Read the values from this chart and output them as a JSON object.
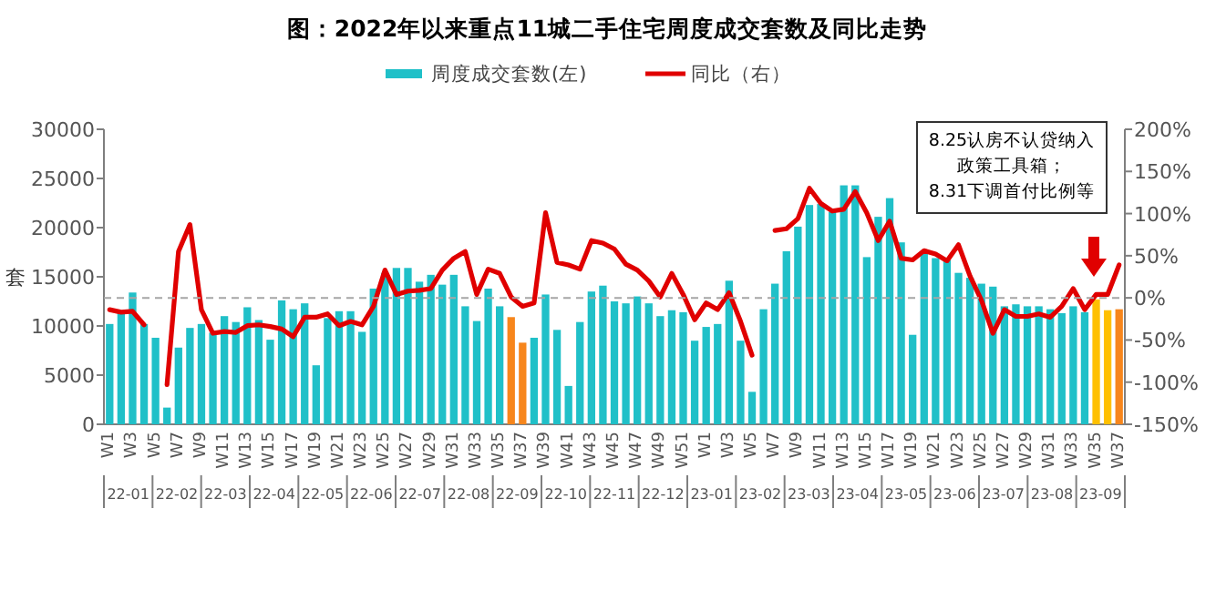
{
  "chart_data": {
    "type": "bar",
    "title": "图：2022年以来重点11城二手住宅周度成交套数及同比走势",
    "ylabel": "套",
    "categories": [
      "W1",
      null,
      "W3",
      null,
      "W5",
      null,
      "W7",
      null,
      "W9",
      null,
      "W11",
      null,
      "W13",
      null,
      "W15",
      null,
      "W17",
      null,
      "W19",
      null,
      "W21",
      null,
      "W23",
      null,
      "W25",
      null,
      "W27",
      null,
      "W29",
      null,
      "W31",
      null,
      "W33",
      null,
      "W35",
      null,
      "W37",
      null,
      "W39",
      null,
      "W41",
      null,
      "W43",
      null,
      "W45",
      null,
      "W47",
      null,
      "W49",
      null,
      "W51",
      null,
      "W1",
      null,
      "W3",
      null,
      "W5",
      null,
      "W7",
      null,
      "W9",
      null,
      "W11",
      null,
      "W13",
      null,
      "W15",
      null,
      "W17",
      null,
      "W19",
      null,
      "W21",
      null,
      "W23",
      null,
      "W25",
      null,
      "W27",
      null,
      "W29",
      null,
      "W31",
      null,
      "W33",
      null,
      "W35",
      null,
      "W37"
    ],
    "series": [
      {
        "name": "周度成交套数(左)",
        "color": "#20c0c8",
        "colors": [
          "#20c0c8",
          "#20c0c8",
          "#20c0c8",
          "#20c0c8",
          "#20c0c8",
          "#20c0c8",
          "#20c0c8",
          "#20c0c8",
          "#20c0c8",
          "#20c0c8",
          "#20c0c8",
          "#20c0c8",
          "#20c0c8",
          "#20c0c8",
          "#20c0c8",
          "#20c0c8",
          "#20c0c8",
          "#20c0c8",
          "#20c0c8",
          "#20c0c8",
          "#20c0c8",
          "#20c0c8",
          "#20c0c8",
          "#20c0c8",
          "#20c0c8",
          "#20c0c8",
          "#20c0c8",
          "#20c0c8",
          "#20c0c8",
          "#20c0c8",
          "#20c0c8",
          "#20c0c8",
          "#20c0c8",
          "#20c0c8",
          "#20c0c8",
          "#f7861c",
          "#f7861c",
          "#20c0c8",
          "#20c0c8",
          "#20c0c8",
          "#20c0c8",
          "#20c0c8",
          "#20c0c8",
          "#20c0c8",
          "#20c0c8",
          "#20c0c8",
          "#20c0c8",
          "#20c0c8",
          "#20c0c8",
          "#20c0c8",
          "#20c0c8",
          "#20c0c8",
          "#20c0c8",
          "#20c0c8",
          "#20c0c8",
          "#20c0c8",
          "#20c0c8",
          "#20c0c8",
          "#20c0c8",
          "#20c0c8",
          "#20c0c8",
          "#20c0c8",
          "#20c0c8",
          "#20c0c8",
          "#20c0c8",
          "#20c0c8",
          "#20c0c8",
          "#20c0c8",
          "#20c0c8",
          "#20c0c8",
          "#20c0c8",
          "#20c0c8",
          "#20c0c8",
          "#20c0c8",
          "#20c0c8",
          "#20c0c8",
          "#20c0c8",
          "#20c0c8",
          "#20c0c8",
          "#20c0c8",
          "#20c0c8",
          "#20c0c8",
          "#20c0c8",
          "#20c0c8",
          "#20c0c8",
          "#20c0c8",
          "#ffc000",
          "#ffc000",
          "#f7861c"
        ],
        "values": [
          10200,
          11500,
          13400,
          10200,
          8800,
          1700,
          7800,
          9800,
          10200,
          9300,
          11000,
          10400,
          11900,
          10600,
          8600,
          12600,
          11700,
          12300,
          6000,
          10800,
          11500,
          11500,
          9400,
          13800,
          15400,
          15900,
          15900,
          14500,
          15200,
          14200,
          15200,
          12000,
          10500,
          13800,
          12000,
          10900,
          8300,
          8800,
          13200,
          9600,
          3900,
          10400,
          13500,
          14100,
          12500,
          12300,
          13000,
          12300,
          11000,
          11600,
          11400,
          8500,
          9900,
          10200,
          14600,
          8500,
          3300,
          11700,
          14300,
          17600,
          20100,
          22300,
          22400,
          21600,
          24300,
          24300,
          17000,
          21100,
          23000,
          18500,
          9100,
          17600,
          16900,
          16700,
          15400,
          14900,
          14300,
          14000,
          12000,
          12200,
          12000,
          12000,
          11700,
          11300,
          12000,
          11400,
          12700,
          11600,
          11700
        ]
      },
      {
        "name": "同比（右）",
        "type": "line",
        "axis": "y2",
        "color": "#e00000",
        "values": [
          -14,
          -17,
          -16,
          -32,
          null,
          -103,
          55,
          87,
          -14,
          -42,
          -40,
          -41,
          -33,
          -32,
          -34,
          -37,
          -46,
          -23,
          -23,
          -19,
          -33,
          -28,
          -32,
          -10,
          33,
          4,
          8,
          9,
          11,
          33,
          47,
          55,
          4,
          34,
          29,
          1,
          -10,
          -6,
          101,
          42,
          39,
          34,
          68,
          65,
          58,
          40,
          33,
          20,
          1,
          29,
          4,
          -26,
          -6,
          -14,
          6,
          -28,
          -68,
          null,
          80,
          82,
          94,
          130,
          112,
          103,
          105,
          126,
          101,
          68,
          91,
          47,
          45,
          56,
          52,
          44,
          63,
          26,
          -3,
          -42,
          -14,
          -22,
          -22,
          -19,
          -23,
          -10,
          11,
          -14,
          4,
          4,
          39
        ]
      }
    ],
    "ylim": [
      0,
      30000
    ],
    "yticks": [
      0,
      5000,
      10000,
      15000,
      20000,
      25000,
      30000
    ],
    "y2lim": [
      -150,
      200
    ],
    "y2ticks": [
      {
        "value": -150,
        "label": "-150%"
      },
      {
        "value": -100,
        "label": "-100%"
      },
      {
        "value": -50,
        "label": "-50%"
      },
      {
        "value": 0,
        "label": "0%"
      },
      {
        "value": 50,
        "label": "50%"
      },
      {
        "value": 100,
        "label": "100%"
      },
      {
        "value": 150,
        "label": "150%"
      },
      {
        "value": 200,
        "label": "200%"
      }
    ],
    "ref_lines": [
      {
        "axis": "y2",
        "value": 0,
        "color": "#a6a6a6",
        "line_style": "dashed"
      }
    ],
    "legend": "top",
    "grid": false,
    "annotations": [
      "8.25认房不认贷纳入",
      "政策工具箱；",
      "8.31下调首付比例等",
      "22-01",
      "22-02",
      "22-03",
      "22-04",
      "22-05",
      "22-06",
      "22-07",
      "22-08",
      "22-09",
      "22-10",
      "22-11",
      "22-12",
      "23-01",
      "23-02",
      "23-03",
      "23-04",
      "23-05",
      "23-06",
      "23-07",
      "23-08",
      "23-09"
    ]
  }
}
